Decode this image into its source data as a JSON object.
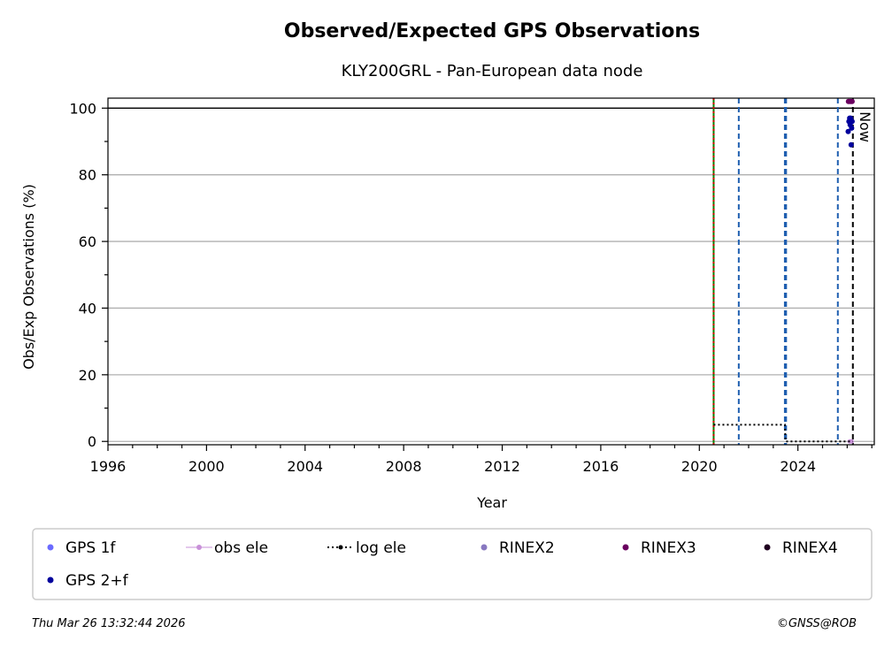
{
  "chart_data": {
    "type": "scatter",
    "title": "Observed/Expected GPS Observations",
    "subtitle": "KLY200GRL - Pan-European data node",
    "xlabel": "Year",
    "ylabel": "Obs/Exp Observations (%)",
    "xlim": [
      1996,
      2027.1
    ],
    "ylim": [
      -1,
      103
    ],
    "xticks": [
      1996,
      2000,
      2004,
      2008,
      2012,
      2016,
      2020,
      2024
    ],
    "yticks": [
      0,
      20,
      40,
      60,
      80,
      100
    ],
    "grid": "y-major",
    "reference_line_y": 100,
    "now_label": "Now",
    "now_x": 2026.23,
    "vlines": [
      {
        "x": 2020.58,
        "color": "#008000",
        "style": "solid"
      },
      {
        "x": 2020.58,
        "color": "#d40000",
        "style": "dotted"
      },
      {
        "x": 2021.6,
        "color": "#1f5fb0",
        "style": "dashed"
      },
      {
        "x": 2023.47,
        "color": "#1f5fb0",
        "style": "dashed"
      },
      {
        "x": 2023.52,
        "color": "#1f5fb0",
        "style": "dashed"
      },
      {
        "x": 2025.62,
        "color": "#1f5fb0",
        "style": "dashed"
      },
      {
        "x": 2026.23,
        "color": "#000000",
        "style": "dashed"
      }
    ],
    "series": [
      {
        "name": "GPS 1f",
        "color": "#6b6bff",
        "x": [],
        "y": []
      },
      {
        "name": "obs ele",
        "color": "#c890d8",
        "x": [
          2026.1,
          2026.18
        ],
        "y": [
          0,
          0
        ]
      },
      {
        "name": "log ele",
        "color": "#000000",
        "x": [
          2020.58,
          2023.47,
          2023.5,
          2026.23
        ],
        "y": [
          5,
          5,
          0,
          0
        ]
      },
      {
        "name": "RINEX2",
        "color": "#8878c0",
        "x": [],
        "y": []
      },
      {
        "name": "RINEX3",
        "color": "#6a005f",
        "x": [
          2026.05,
          2026.1,
          2026.15,
          2026.2
        ],
        "y": [
          102,
          102,
          102,
          102
        ]
      },
      {
        "name": "RINEX4",
        "color": "#200020",
        "x": [],
        "y": []
      },
      {
        "name": "GPS 2+f",
        "color": "#00009c",
        "x": [
          2026.04,
          2026.07,
          2026.1,
          2026.12,
          2026.14,
          2026.16,
          2026.18,
          2026.2
        ],
        "y": [
          93,
          96,
          97,
          95,
          97,
          89,
          94,
          96
        ]
      }
    ],
    "legend": {
      "placement": "bottom",
      "entries": [
        "GPS 1f",
        "obs ele",
        "log ele",
        "RINEX2",
        "RINEX3",
        "RINEX4",
        "GPS 2+f"
      ]
    }
  },
  "footer": {
    "timestamp": "Thu Mar 26 13:32:44 2026",
    "copyright": "©GNSS@ROB"
  }
}
